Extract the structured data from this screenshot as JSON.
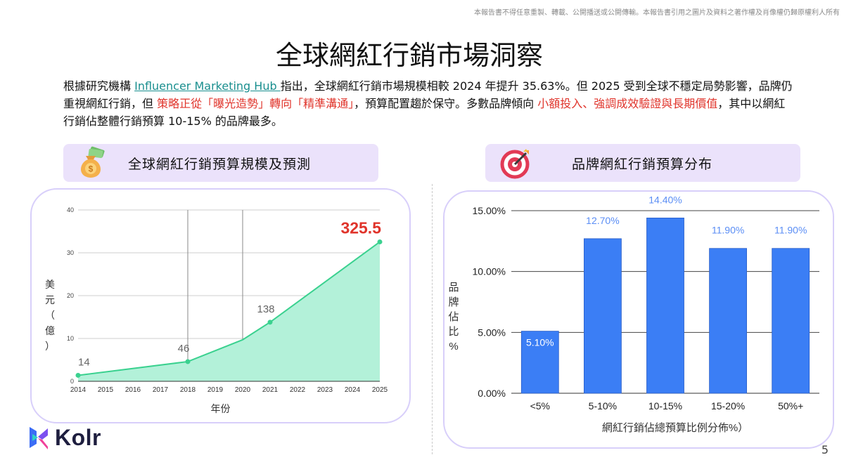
{
  "disclaimer": "本報告書不得任意重製、轉載、公開播送或公開傳輸。本報告書引用之圖片及資料之著作權及肖像權仍歸原權利人所有",
  "title": "全球網紅行銷市場洞察",
  "intro": {
    "p1": "根據研究機構 ",
    "link": "Influencer Marketing Hub ",
    "p2": "指出，全球網紅行銷市場規模相較  2024 年提升 35.63%。但 2025 受到全球不穩定局勢影響，品牌仍重視網紅行銷，但 ",
    "hl1": "策略正從「曝光造勢」轉向「精準溝通」",
    "p3": "，預算配置趨於保守。多數品牌傾向 ",
    "hl2": "小額投入、強調成效驗證與長期價值",
    "p4": "，其中以網紅行銷佔整體行銷預算  10-15% 的品牌最多。"
  },
  "sections": {
    "left_title": "全球網紅行銷預算規模及預測",
    "right_title": "品牌網紅行銷預算分布"
  },
  "colors": {
    "area_fill": "#b3f1d9",
    "area_line": "#3ad18f",
    "bar": "#3b7ef5",
    "highlight": "#e0342b",
    "header_bg": "#ebe2fb",
    "panel_border": "#d8cffa"
  },
  "icons": {
    "left_header": "money-bag-icon",
    "right_header": "target-icon",
    "logo": "kolr-logo-icon"
  },
  "chart_data": [
    {
      "type": "area",
      "x": [
        2014,
        2015,
        2016,
        2017,
        2018,
        2019,
        2020,
        2021,
        2022,
        2023,
        2024,
        2025
      ],
      "xticks": [
        "2014",
        "2015",
        "2016",
        "2017",
        "2018",
        "2019",
        "2020",
        "2021",
        "2022",
        "2023",
        "2024",
        "2025"
      ],
      "yticks": [
        "0",
        "10",
        "20",
        "30",
        "40"
      ],
      "ylim": [
        0,
        40
      ],
      "points": [
        {
          "x": 2014,
          "y": 1.4
        },
        {
          "x": 2018,
          "y": 4.6
        },
        {
          "x": 2020,
          "y": 9.7
        },
        {
          "x": 2021,
          "y": 13.8
        },
        {
          "x": 2025,
          "y": 32.55
        }
      ],
      "data_labels": [
        {
          "x": 2014,
          "text": "14"
        },
        {
          "x": 2018,
          "text": "46"
        },
        {
          "x": 2021,
          "text": "138"
        },
        {
          "x": 2025,
          "text": "325.5"
        }
      ],
      "xlabel": "年份",
      "ylabel": "美元（億）",
      "vertical_grid_years": [
        2018,
        2020
      ],
      "grid": true
    },
    {
      "type": "bar",
      "categories": [
        "<5%",
        "5-10%",
        "10-15%",
        "15-20%",
        "50%+"
      ],
      "values": [
        5.1,
        12.7,
        14.4,
        11.9,
        11.9
      ],
      "value_labels": [
        "5.10%",
        "12.70%",
        "14.40%",
        "11.90%",
        "11.90%"
      ],
      "yticks": [
        "0.00%",
        "5.00%",
        "10.00%",
        "15.00%"
      ],
      "ylim": [
        0,
        15
      ],
      "xlabel": "網紅行銷佔總預算比例分佈%）",
      "ylabel": "品牌佔比%",
      "grid": true
    }
  ],
  "logo_text": "Kolr",
  "page_number": "5"
}
